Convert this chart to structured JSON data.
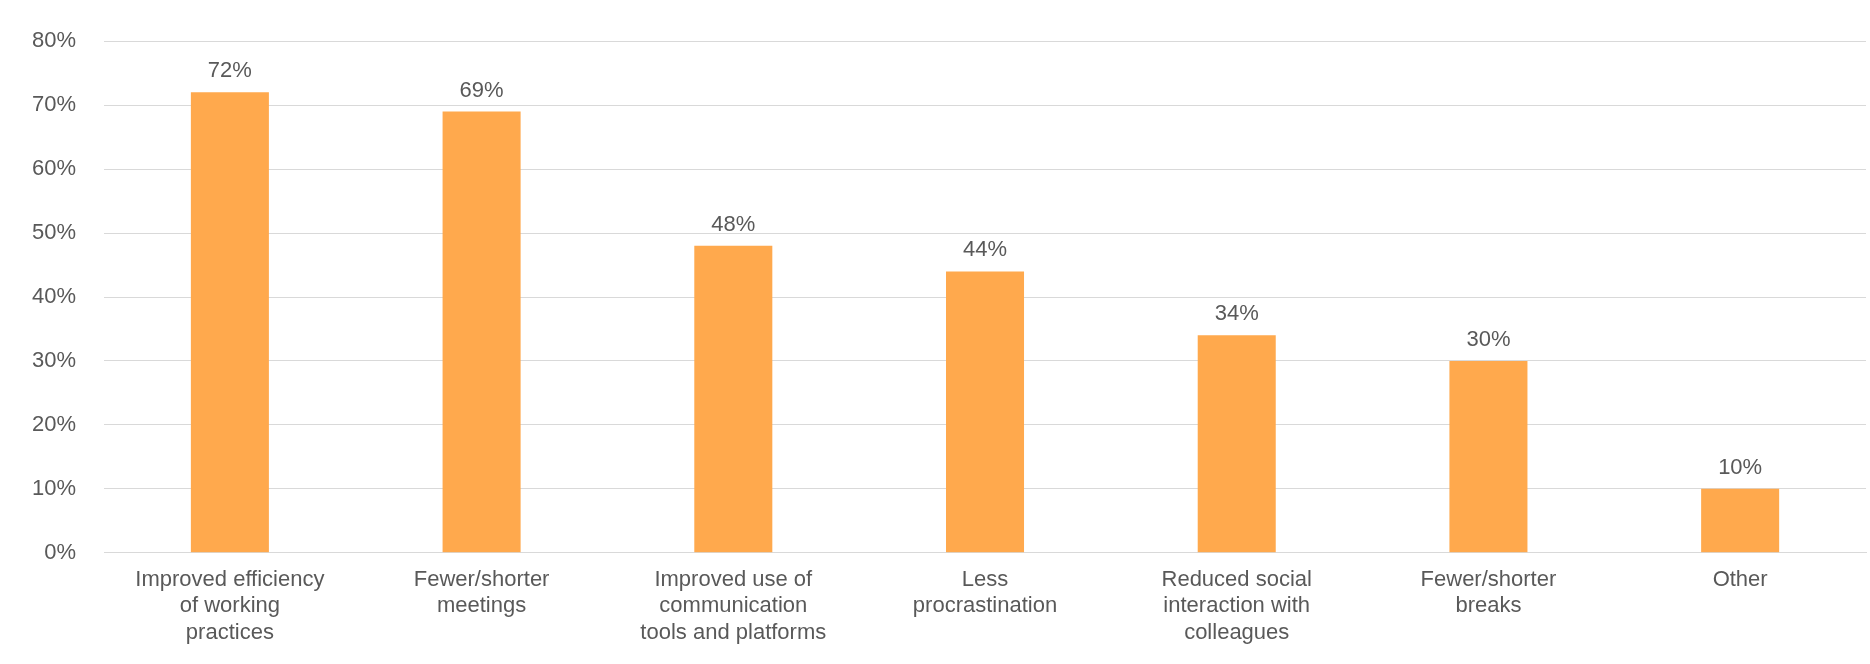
{
  "chart_data": {
    "type": "bar",
    "categories": [
      "Improved efficiency of working practices",
      "Fewer/shorter meetings",
      "Improved use of communication tools and platforms",
      "Less procrastination",
      "Reduced social interaction with colleagues",
      "Fewer/shorter breaks",
      "Other"
    ],
    "values": [
      72,
      69,
      48,
      44,
      34,
      30,
      10
    ],
    "color": "#ffa94d",
    "ylim": [
      0,
      80
    ],
    "yticks": [
      {
        "value": 0,
        "label": "0%"
      },
      {
        "value": 10,
        "label": "10%"
      },
      {
        "value": 20,
        "label": "20%"
      },
      {
        "value": 30,
        "label": "30%"
      },
      {
        "value": 40,
        "label": "40%"
      },
      {
        "value": 50,
        "label": "50%"
      },
      {
        "value": 60,
        "label": "60%"
      },
      {
        "value": 70,
        "label": "70%"
      },
      {
        "value": 80,
        "label": "80%"
      }
    ],
    "value_labels": [
      "72%",
      "69%",
      "48%",
      "44%",
      "34%",
      "30%",
      "10%"
    ],
    "grid": "y",
    "legend": false
  }
}
